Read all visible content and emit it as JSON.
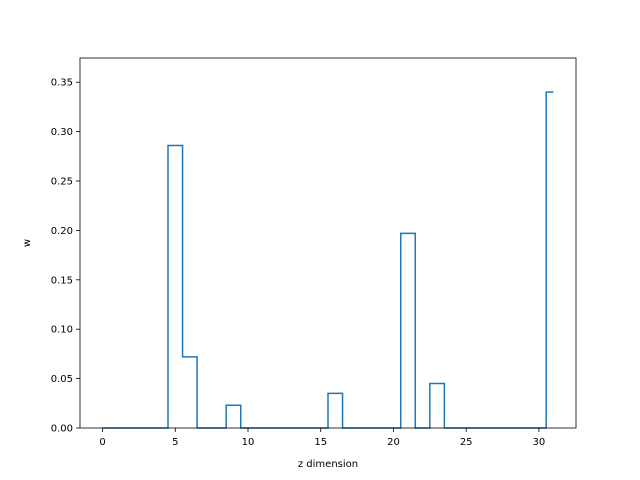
{
  "chart_data": {
    "type": "line",
    "drawstyle": "steps-mid",
    "title": "",
    "xlabel": "z dimension",
    "ylabel": "w",
    "xlim": [
      -1.55,
      32.55
    ],
    "ylim": [
      0,
      0.3745
    ],
    "xticks": [
      0,
      5,
      10,
      15,
      20,
      25,
      30
    ],
    "yticks": [
      0.0,
      0.05,
      0.1,
      0.15,
      0.2,
      0.25,
      0.3,
      0.35
    ],
    "xtick_labels": [
      "0",
      "5",
      "10",
      "15",
      "20",
      "25",
      "30"
    ],
    "ytick_labels": [
      "0.00",
      "0.05",
      "0.10",
      "0.15",
      "0.20",
      "0.25",
      "0.30",
      "0.35"
    ],
    "color": "#1f77b4",
    "grid": false,
    "series": [
      {
        "x": [
          0,
          1,
          2,
          3,
          4,
          5,
          6,
          7,
          8,
          9,
          10,
          11,
          12,
          13,
          14,
          15,
          16,
          17,
          18,
          19,
          20,
          21,
          22,
          23,
          24,
          25,
          26,
          27,
          28,
          29,
          30,
          31
        ],
        "values": [
          0,
          0,
          0,
          0,
          0,
          0.286,
          0.072,
          0,
          0,
          0.023,
          0,
          0,
          0,
          0,
          0,
          0,
          0.035,
          0,
          0,
          0,
          0,
          0.197,
          0,
          0.045,
          0,
          0,
          0,
          0,
          0,
          0,
          0,
          0.34
        ]
      }
    ]
  }
}
